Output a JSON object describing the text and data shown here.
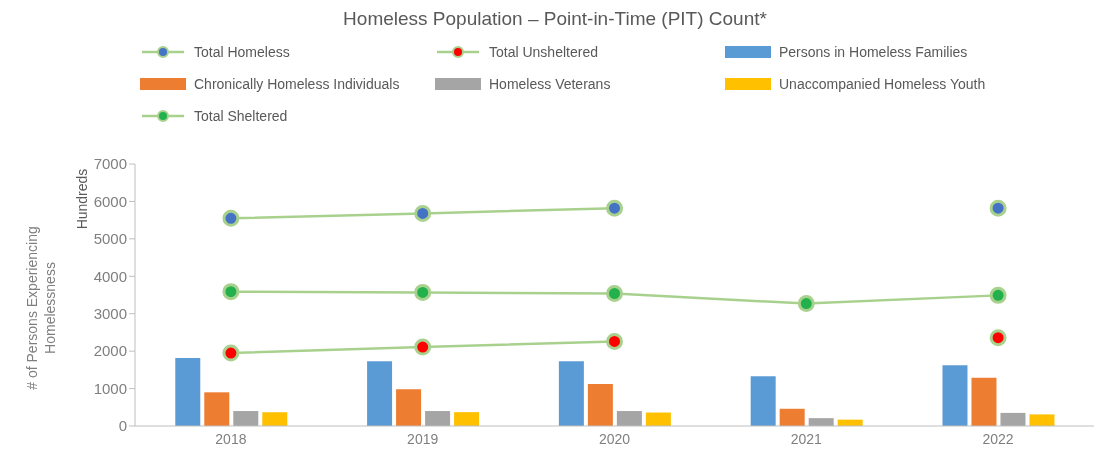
{
  "chart_data": {
    "type": "bar",
    "title": "Homeless Population – Point-in-Time (PIT) Count*",
    "ylabel": "# of Persons Experiencing Homelessness",
    "annotations": [
      "Hundreds"
    ],
    "categories": [
      "2018",
      "2019",
      "2020",
      "2021",
      "2022"
    ],
    "ylim": [
      0,
      7000
    ],
    "yticks": [
      0,
      1000,
      2000,
      3000,
      4000,
      5000,
      6000,
      7000
    ],
    "grid": false,
    "legend": "top",
    "marker": "circle",
    "series": [
      {
        "name": "Total Homeless",
        "type": "line",
        "color": "#a9d18e",
        "colors": [
          "#4472c4",
          "#4472c4",
          "#4472c4",
          null,
          "#4472c4"
        ],
        "values": [
          5550,
          5680,
          5820,
          null,
          5820
        ]
      },
      {
        "name": "Total Unsheltered",
        "type": "line",
        "color": "#a9d18e",
        "colors": [
          "#ff0000",
          "#ff0000",
          "#ff0000",
          null,
          "#ff0000"
        ],
        "values": [
          1950,
          2110,
          2260,
          null,
          2360
        ]
      },
      {
        "name": "Persons in Homeless Families",
        "color": "#5b9bd5",
        "values": [
          1820,
          1730,
          1730,
          1330,
          1620
        ]
      },
      {
        "name": "Chronically Homeless Individuals",
        "color": "#ed7d31",
        "values": [
          900,
          980,
          1120,
          460,
          1290
        ]
      },
      {
        "name": "Homeless Veterans",
        "color": "#a5a5a5",
        "values": [
          400,
          400,
          400,
          210,
          350
        ]
      },
      {
        "name": "Unaccompanied Homeless Youth",
        "color": "#ffc000",
        "values": [
          370,
          370,
          360,
          170,
          310
        ]
      },
      {
        "name": "Total Sheltered",
        "type": "line",
        "color": "#a9d18e",
        "colors": [
          "#22b14c",
          "#22b14c",
          "#22b14c",
          "#22b14c",
          "#22b14c"
        ],
        "values": [
          3590,
          3570,
          3540,
          3270,
          3490
        ]
      }
    ]
  }
}
